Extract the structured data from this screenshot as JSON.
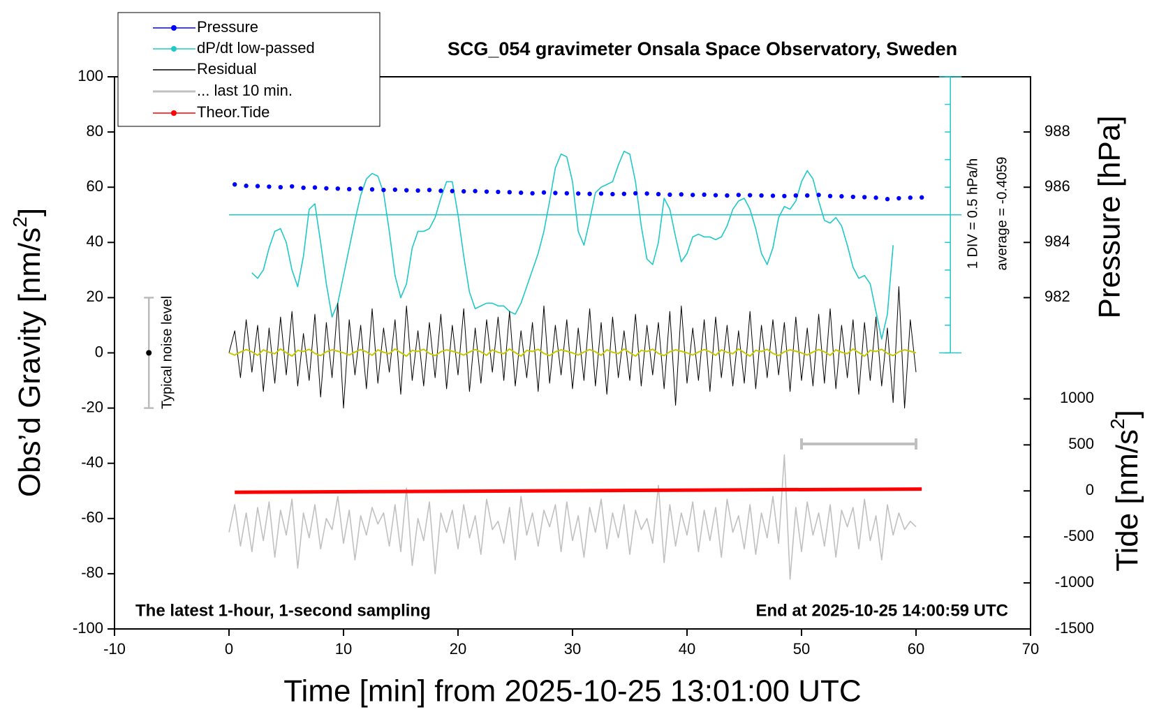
{
  "chart_data": {
    "type": "line",
    "title": "SCG_054 gravimeter Onsala Space Observatory, Sweden",
    "xlabel": "Time [min] from 2025-10-25 13:01:00 UTC",
    "ylabel": {
      "text": "Obs’d Gravity [nm/s",
      "sup": "2",
      "end": "]"
    },
    "y2label": "Pressure [hPa]",
    "y3label": {
      "text": "Tide [nm/s",
      "sup": "2",
      "end": "]"
    },
    "annotations": {
      "left": "The latest 1-hour, 1-second sampling",
      "right": "End at 2025-10-25 14:00:59 UTC",
      "div": "1 DIV = 0.5 hPa/h",
      "average": "average = -0.4059"
    },
    "xlim": [
      -10,
      70
    ],
    "xticks": [
      -10,
      0,
      10,
      20,
      30,
      40,
      50,
      60,
      70
    ],
    "ylim": [
      -100,
      100
    ],
    "yticks": [
      -100,
      -80,
      -60,
      -40,
      -20,
      0,
      20,
      40,
      60,
      80,
      100
    ],
    "y2lim": [
      970,
      990
    ],
    "y2ticks": [
      982,
      984,
      986,
      988
    ],
    "y3lim": [
      -1500,
      4500
    ],
    "y3ticks": [
      -1500,
      -1000,
      -500,
      0,
      500,
      1000
    ],
    "dpdt_axis": {
      "ylim": [
        0,
        100
      ],
      "ticks": [
        0,
        10,
        20,
        30,
        40,
        50,
        60,
        70,
        80,
        90,
        100
      ],
      "average": 50
    },
    "noise_bar": {
      "x": -7,
      "y": 0,
      "error": 20,
      "label": "Typical noise level"
    },
    "last_10min_bar": {
      "x": [
        50,
        60
      ],
      "y": -33
    },
    "x": [
      0,
      0.5,
      1,
      1.5,
      2,
      2.5,
      3,
      3.5,
      4,
      4.5,
      5,
      5.5,
      6,
      6.5,
      7,
      7.5,
      8,
      8.5,
      9,
      9.5,
      10,
      10.5,
      11,
      11.5,
      12,
      12.5,
      13,
      13.5,
      14,
      14.5,
      15,
      15.5,
      16,
      16.5,
      17,
      17.5,
      18,
      18.5,
      19,
      19.5,
      20,
      20.5,
      21,
      21.5,
      22,
      22.5,
      23,
      23.5,
      24,
      24.5,
      25,
      25.5,
      26,
      26.5,
      27,
      27.5,
      28,
      28.5,
      29,
      29.5,
      30,
      30.5,
      31,
      31.5,
      32,
      32.5,
      33,
      33.5,
      34,
      34.5,
      35,
      35.5,
      36,
      36.5,
      37,
      37.5,
      38,
      38.5,
      39,
      39.5,
      40,
      40.5,
      41,
      41.5,
      42,
      42.5,
      43,
      43.5,
      44,
      44.5,
      45,
      45.5,
      46,
      46.5,
      47,
      47.5,
      48,
      48.5,
      49,
      49.5,
      50,
      50.5,
      51,
      51.5,
      52,
      52.5,
      53,
      53.5,
      54,
      54.5,
      55,
      55.5,
      56,
      56.5,
      57,
      57.5,
      58,
      58.5,
      59,
      59.5,
      60
    ],
    "series": [
      {
        "name": "Pressure",
        "color": "#0000ff",
        "axis": "y2",
        "marker": "dot",
        "x": [
          0.5,
          1.5,
          2.5,
          3.5,
          4.5,
          5.5,
          6.5,
          7.5,
          8.5,
          9.5,
          10.5,
          11.5,
          12.5,
          13.5,
          14.5,
          15.5,
          16.5,
          17.5,
          18.5,
          19.5,
          20.5,
          21.5,
          22.5,
          23.5,
          24.5,
          25.5,
          26.5,
          27.5,
          28.5,
          29.5,
          30.5,
          31.5,
          32.5,
          33.5,
          34.5,
          35.5,
          36.5,
          37.5,
          38.5,
          39.5,
          40.5,
          41.5,
          42.5,
          43.5,
          44.5,
          45.5,
          46.5,
          47.5,
          48.5,
          49.5,
          50.5,
          51.5,
          52.5,
          53.5,
          54.5,
          55.5,
          56.5,
          57.5,
          58.5,
          59.5,
          60.5
        ],
        "values": [
          986.1,
          986.05,
          986.04,
          986.02,
          986.0,
          986.03,
          985.98,
          985.99,
          985.96,
          985.95,
          985.93,
          985.95,
          985.92,
          985.9,
          985.91,
          985.89,
          985.88,
          985.9,
          985.87,
          985.86,
          985.85,
          985.86,
          985.84,
          985.83,
          985.82,
          985.8,
          985.78,
          985.81,
          985.79,
          985.78,
          985.77,
          985.76,
          985.77,
          985.75,
          985.76,
          985.78,
          985.77,
          985.75,
          985.73,
          985.74,
          985.72,
          985.73,
          985.71,
          985.7,
          985.72,
          985.71,
          985.7,
          985.69,
          985.68,
          985.7,
          985.7,
          985.72,
          985.68,
          985.67,
          985.65,
          985.64,
          985.62,
          985.57,
          985.6,
          985.62,
          985.63
        ]
      },
      {
        "name": "dP/dt low-passed",
        "color": "#20c8c8",
        "axis": "dpdt",
        "marker": "dot",
        "x": [
          2,
          2.5,
          3,
          3.5,
          4,
          4.5,
          5,
          5.5,
          6,
          6.5,
          7,
          7.5,
          8,
          8.5,
          9,
          9.5,
          10,
          10.5,
          11,
          11.5,
          12,
          12.5,
          13,
          13.5,
          14,
          14.5,
          15,
          15.5,
          16,
          16.5,
          17,
          17.5,
          18,
          18.5,
          19,
          19.5,
          20,
          20.5,
          21,
          21.5,
          22,
          22.5,
          23,
          23.5,
          24,
          24.5,
          25,
          25.5,
          26,
          26.5,
          27,
          27.5,
          28,
          28.5,
          29,
          29.5,
          30,
          30.5,
          31,
          31.5,
          32,
          32.5,
          33,
          33.5,
          34,
          34.5,
          35,
          35.5,
          36,
          36.5,
          37,
          37.5,
          38,
          38.5,
          39,
          39.5,
          40,
          40.5,
          41,
          41.5,
          42,
          42.5,
          43,
          43.5,
          44,
          44.5,
          45,
          45.5,
          46,
          46.5,
          47,
          47.5,
          48,
          48.5,
          49,
          49.5,
          50,
          50.5,
          51,
          51.5,
          52,
          52.5,
          53,
          53.5,
          54,
          54.5,
          55,
          55.5,
          56,
          56.5,
          57,
          57.5,
          58
        ],
        "values": [
          29,
          27,
          30,
          38,
          44,
          45,
          40,
          30,
          24,
          35,
          52,
          54,
          40,
          25,
          13,
          18,
          28,
          38,
          48,
          57,
          63,
          65,
          64,
          58,
          44,
          28,
          20,
          25,
          38,
          44,
          44,
          45,
          49,
          56,
          62,
          62,
          50,
          35,
          22,
          16,
          17,
          18,
          18,
          17,
          17,
          15,
          14,
          18,
          24,
          30,
          36,
          44,
          55,
          67,
          72,
          71,
          62,
          44,
          39,
          48,
          58,
          60,
          61,
          62,
          68,
          73,
          72,
          62,
          46,
          34,
          32,
          40,
          56,
          52,
          42,
          33,
          36,
          42,
          43,
          42,
          42,
          41,
          42,
          46,
          52,
          55,
          56,
          52,
          45,
          36,
          32,
          38,
          49,
          53,
          52,
          55,
          62,
          66,
          63,
          55,
          48,
          47,
          49,
          46,
          39,
          31,
          27,
          28,
          25,
          15,
          5,
          14,
          39
        ]
      },
      {
        "name": "Residual",
        "color": "#000000",
        "axis": "y",
        "values": [
          0,
          8,
          -9,
          12,
          -7,
          10,
          -14,
          9,
          -11,
          13,
          -8,
          15,
          -12,
          7,
          -10,
          14,
          -16,
          11,
          -9,
          18,
          -20,
          12,
          -8,
          10,
          -13,
          16,
          -11,
          9,
          -7,
          12,
          -15,
          17,
          -10,
          8,
          -12,
          11,
          -9,
          14,
          -13,
          10,
          -8,
          16,
          -14,
          9,
          -11,
          12,
          -7,
          13,
          -10,
          15,
          -12,
          8,
          -9,
          11,
          -14,
          17,
          -11,
          10,
          -8,
          12,
          -13,
          9,
          -10,
          16,
          -12,
          11,
          -15,
          13,
          -9,
          8,
          -10,
          14,
          -12,
          10,
          -8,
          11,
          -13,
          15,
          -19,
          17,
          -11,
          9,
          -10,
          12,
          -14,
          13,
          -9,
          10,
          -12,
          8,
          -11,
          15,
          -13,
          10,
          -9,
          12,
          -8,
          11,
          -14,
          13,
          -10,
          9,
          -12,
          14,
          -11,
          16,
          -13,
          10,
          -9,
          12,
          -15,
          11,
          -10,
          13,
          -12,
          9,
          -18,
          24,
          -20,
          12,
          -7
        ]
      },
      {
        "name": "... last 10 min.",
        "color": "#c0c0c0",
        "axis": "y",
        "values": [
          -65,
          -55,
          -70,
          -58,
          -72,
          -56,
          -68,
          -54,
          -74,
          -57,
          -66,
          -53,
          -78,
          -58,
          -67,
          -55,
          -71,
          -60,
          -64,
          -52,
          -69,
          -57,
          -75,
          -59,
          -66,
          -56,
          -62,
          -58,
          -70,
          -55,
          -72,
          -49,
          -77,
          -60,
          -68,
          -54,
          -80,
          -58,
          -65,
          -57,
          -71,
          -55,
          -67,
          -59,
          -73,
          -53,
          -64,
          -61,
          -69,
          -56,
          -75,
          -52,
          -66,
          -58,
          -70,
          -57,
          -63,
          -55,
          -72,
          -54,
          -68,
          -59,
          -74,
          -56,
          -65,
          -53,
          -71,
          -58,
          -67,
          -55,
          -73,
          -57,
          -64,
          -60,
          -69,
          -48,
          -76,
          -55,
          -70,
          -58,
          -66,
          -54,
          -72,
          -57,
          -68,
          -56,
          -74,
          -53,
          -65,
          -59,
          -71,
          -55,
          -73,
          -58,
          -67,
          -52,
          -69,
          -37,
          -82,
          -56,
          -72,
          -54,
          -66,
          -58,
          -70,
          -55,
          -74,
          -57,
          -63,
          -56,
          -71,
          -53,
          -68,
          -59,
          -75,
          -55,
          -66,
          -58,
          -64,
          -61,
          -63
        ]
      },
      {
        "name": "Theor.Tide",
        "color": "#ff0000",
        "axis": "y3",
        "marker": "dot",
        "x": [
          0.5,
          60.5
        ],
        "values": [
          -15,
          20
        ]
      },
      {
        "color": "#c8c800",
        "axis": "y",
        "values": [
          0,
          -0.8,
          0.3,
          1.2,
          0.4,
          -0.9,
          1.1,
          0.2,
          -0.3,
          1.4,
          0.1,
          -1.2,
          0.9,
          0.5,
          1.3,
          -0.2,
          -1,
          0.4,
          1.1,
          0.6,
          0,
          -0.8,
          0.3,
          1.2,
          0.4,
          -0.9,
          1.1,
          0.2,
          -0.3,
          1.4,
          0.1,
          -1.2,
          0.9,
          0.5,
          1.3,
          -0.2,
          -1,
          0.4,
          1.1,
          0.6,
          0,
          -0.8,
          0.3,
          1.2,
          0.4,
          -0.9,
          1.1,
          0.2,
          -0.3,
          1.4,
          0.1,
          -1.2,
          0.9,
          0.5,
          1.3,
          -0.2,
          -1,
          0.4,
          1.1,
          0.6,
          0,
          -0.8,
          0.3,
          1.2,
          0.4,
          -0.9,
          1.1,
          0.2,
          -0.3,
          1.4,
          0.1,
          -1.2,
          0.9,
          0.5,
          1.3,
          -0.2,
          -1,
          0.4,
          1.1,
          0.6,
          0,
          -0.8,
          0.3,
          1.2,
          0.4,
          -0.9,
          1.1,
          0.2,
          -0.3,
          1.4,
          0.1,
          -1.2,
          0.9,
          0.5,
          1.3,
          -0.2,
          -1,
          0.4,
          1.1,
          0.6,
          0,
          -0.8,
          0.3,
          1.2,
          0.4,
          -0.9,
          1.1,
          0.2,
          -0.3,
          1.4,
          0.1,
          -1.2,
          0.9,
          0.5,
          1.3,
          -0.2,
          -1,
          0.4,
          1.1,
          0.6,
          0
        ]
      }
    ]
  }
}
